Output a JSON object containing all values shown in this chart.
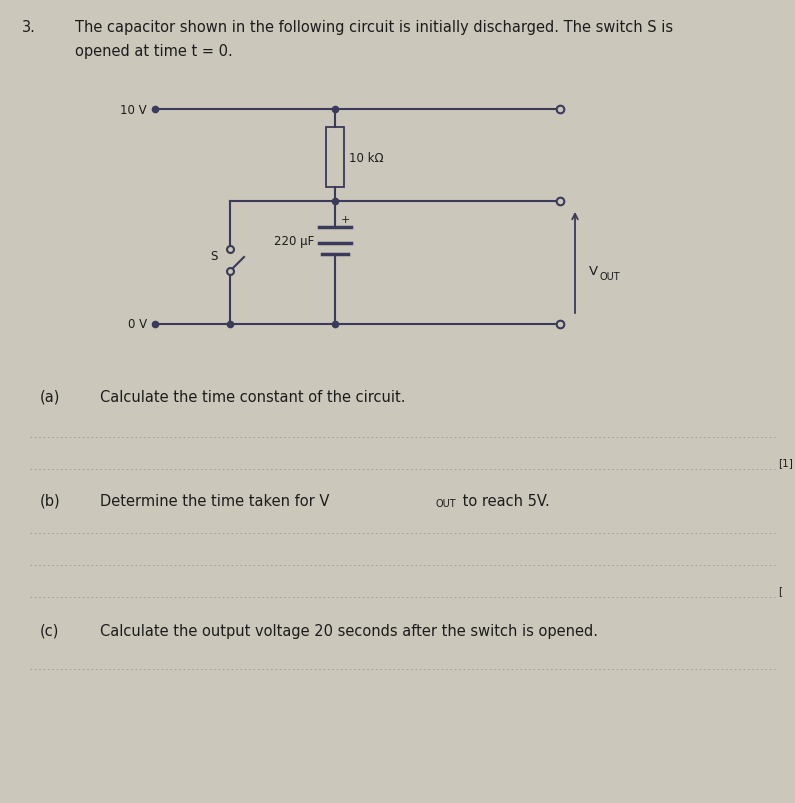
{
  "bg_color": "#cbc7bb",
  "text_color": "#1c1c1c",
  "circuit_color": "#3a3a5a",
  "question_number": "3.",
  "intro_line1": "The capacitor shown in the following circuit is initially discharged. The switch S is",
  "intro_line2": "opened at time t = 0.",
  "label_10V": "10 V",
  "label_0V": "0 V",
  "label_resistor": "10 kΩ",
  "label_capacitor": "220 μF",
  "label_switch": "S",
  "label_plus": "+",
  "label_vout_V": "V",
  "label_vout_sub": "OUT",
  "part_a_label": "(a)",
  "part_a_text": "Calculate the time constant of the circuit.",
  "part_b_label": "(b)",
  "part_b_text": "Determine the time taken for V",
  "part_b_sub": "OUT",
  "part_b_end": " to reach 5V.",
  "part_c_label": "(c)",
  "part_c_text": "Calculate the output voltage 20 seconds after the switch is opened.",
  "mark_a": "[1]",
  "mark_b": "[",
  "dot_color": "#9a9a9a",
  "fs_body": 10.5,
  "fs_small": 8.5,
  "fs_tiny": 7.0
}
